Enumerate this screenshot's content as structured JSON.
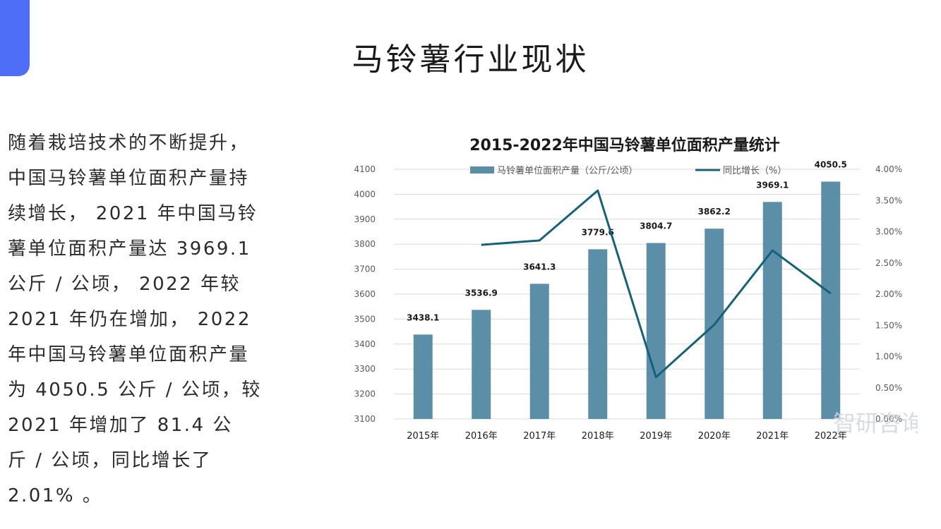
{
  "page": {
    "title": "马铃薯行业现状",
    "description_lines": [
      "随着栽培技术的不断提升，",
      "中国马铃薯单位面积产量持",
      "续增长， 2021 年中国马铃",
      "薯单位面积产量达 3969.1",
      "公斤 / 公顷， 2022 年较",
      "2021 年仍在增加， 2022",
      "年中国马铃薯单位面积产量",
      "为 4050.5 公斤 / 公顷，较",
      "2021 年增加了 81.4 公",
      "斤 / 公顷，同比增长了",
      "2.01% 。"
    ]
  },
  "watermark": {
    "text": "智研咨询"
  },
  "colors": {
    "accent": "#4f6ef7",
    "bar": "#5b8fa8",
    "line": "#14627a",
    "grid": "#d9d9d9",
    "axis_text": "#595959"
  },
  "chart_data": {
    "type": "bar",
    "title": "2015-2022年中国马铃薯单位面积产量统计",
    "categories": [
      "2015年",
      "2016年",
      "2017年",
      "2018年",
      "2019年",
      "2020年",
      "2021年",
      "2022年"
    ],
    "series": [
      {
        "name": "马铃薯单位面积产量（公斤/公顷）",
        "type": "bar",
        "axis": "left",
        "values": [
          3438.1,
          3536.9,
          3641.3,
          3779.6,
          3804.7,
          3862.2,
          3969.1,
          4050.5
        ],
        "data_labels": [
          "3438.1",
          "3536.9",
          "3641.3",
          "3779.6",
          "3804.7",
          "3862.2",
          "3969.1",
          "4050.5"
        ]
      },
      {
        "name": "同比增长（%）",
        "type": "line",
        "axis": "right",
        "values": [
          null,
          2.79,
          2.86,
          3.66,
          0.67,
          1.51,
          2.7,
          2.01
        ]
      }
    ],
    "ylim": [
      3100,
      4100
    ],
    "yticks": [
      "3100",
      "3200",
      "3300",
      "3400",
      "3500",
      "3600",
      "3700",
      "3800",
      "3900",
      "4000",
      "4100"
    ],
    "y2lim": [
      0,
      4
    ],
    "y2ticks": [
      "0.00%",
      "0.50%",
      "1.00%",
      "1.50%",
      "2.00%",
      "2.50%",
      "3.00%",
      "3.50%",
      "4.00%"
    ],
    "grid": true,
    "legend": "top"
  }
}
